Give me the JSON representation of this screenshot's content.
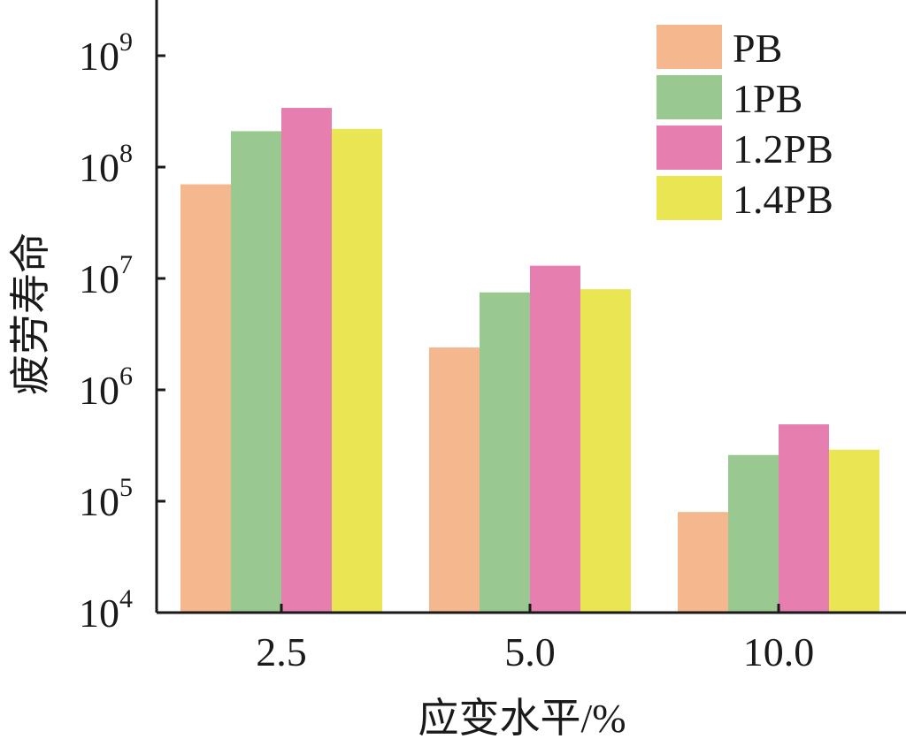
{
  "chart_data": {
    "type": "bar",
    "scale": "log",
    "xlabel": "应变水平/%",
    "ylabel": "疲劳寿命",
    "categories": [
      "2.5",
      "5.0",
      "10.0"
    ],
    "ylim": [
      10000,
      3000000000
    ],
    "yticks": [
      {
        "base": "10",
        "exp": "4",
        "value": 10000
      },
      {
        "base": "10",
        "exp": "5",
        "value": 100000
      },
      {
        "base": "10",
        "exp": "6",
        "value": 1000000
      },
      {
        "base": "10",
        "exp": "7",
        "value": 10000000
      },
      {
        "base": "10",
        "exp": "8",
        "value": 100000000
      },
      {
        "base": "10",
        "exp": "9",
        "value": 1000000000
      }
    ],
    "legend_position": "top-right",
    "grid": false,
    "series": [
      {
        "name": "PB",
        "color": "#F5B78E",
        "values": [
          70000000,
          2400000,
          80000
        ]
      },
      {
        "name": "1PB",
        "color": "#99C991",
        "values": [
          210000000,
          7500000,
          260000
        ]
      },
      {
        "name": "1.2PB",
        "color": "#E67FAF",
        "values": [
          340000000,
          13000000,
          490000
        ]
      },
      {
        "name": "1.4PB",
        "color": "#E9E553",
        "values": [
          220000000,
          8000000,
          290000
        ]
      }
    ]
  }
}
